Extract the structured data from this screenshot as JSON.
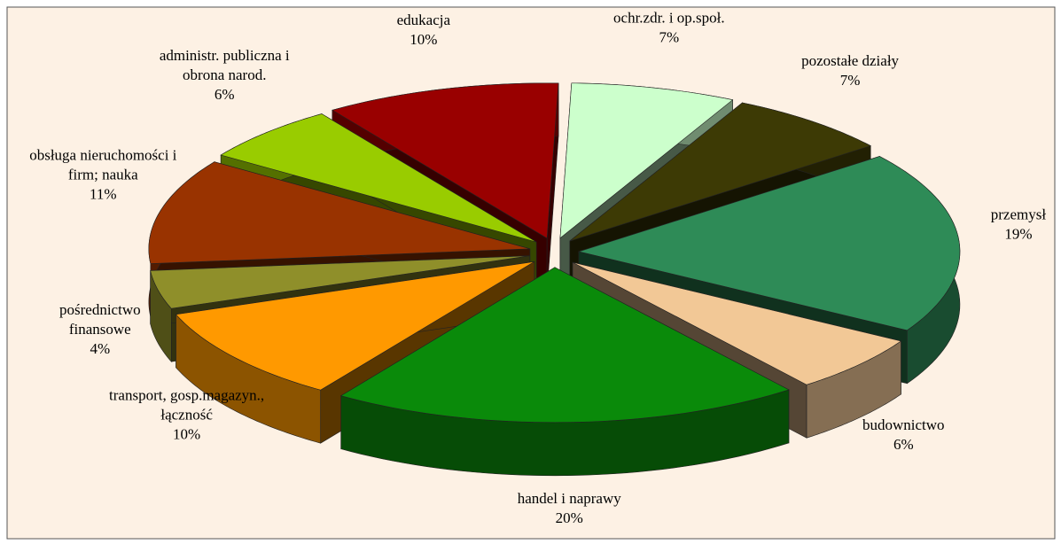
{
  "chart_data": {
    "type": "pie3d",
    "categories": [
      "ochr.zdr. i op.społ.",
      "pozostałe działy",
      "przemysł",
      "budownictwo",
      "handel i naprawy",
      "transport, gosp.magazyn.,\nłączność",
      "pośrednictwo\nfinansowe",
      "obsługa nieruchomości i\nfirm; nauka",
      "administr. publiczna i\nobrona narod.",
      "edukacja"
    ],
    "values": [
      7,
      7,
      19,
      6,
      20,
      10,
      4,
      11,
      6,
      10
    ],
    "value_labels": [
      "7%",
      "7%",
      "19%",
      "6%",
      "20%",
      "10%",
      "4%",
      "11%",
      "6%",
      "10%"
    ],
    "colors": [
      "#ccffcc",
      "#3d3a05",
      "#2e8b57",
      "#f2c896",
      "#0a8a0a",
      "#ff9900",
      "#8f8f2a",
      "#993300",
      "#99cc00",
      "#990000"
    ]
  }
}
